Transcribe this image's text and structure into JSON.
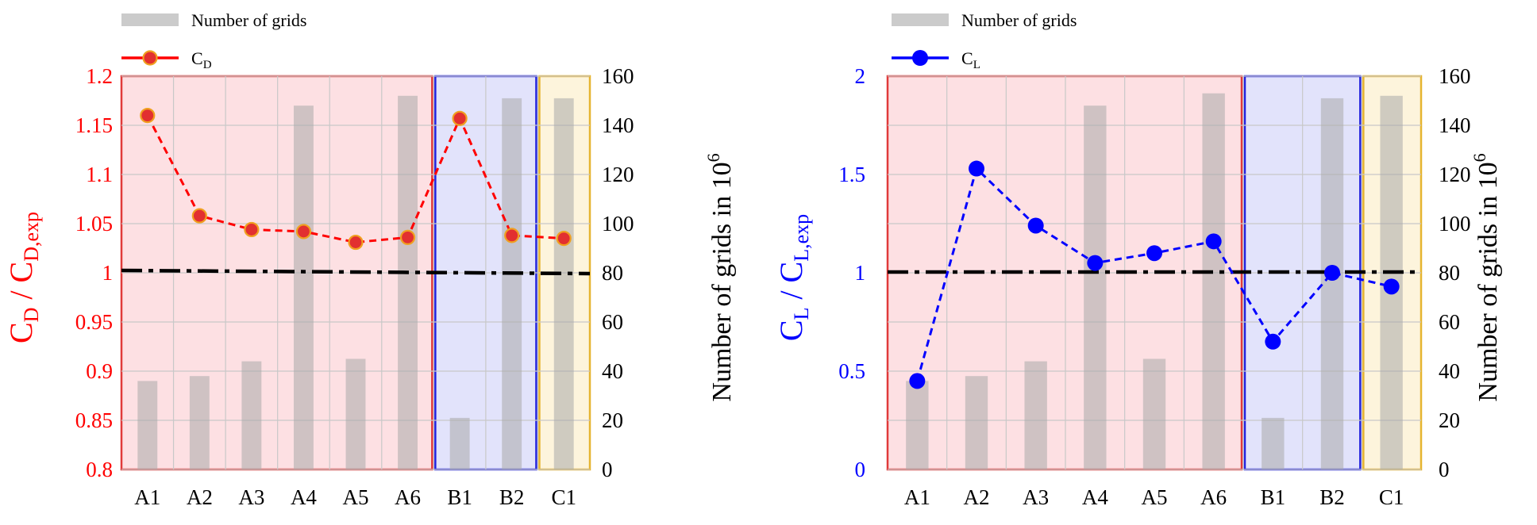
{
  "chart_data": [
    {
      "type": "bar+line",
      "name": "drag",
      "accent": "#ff0000",
      "categories": [
        "A1",
        "A2",
        "A3",
        "A4",
        "A5",
        "A6",
        "B1",
        "B2",
        "C1"
      ],
      "grid_counts": [
        36,
        38,
        44,
        148,
        45,
        152,
        21,
        151,
        151
      ],
      "ratio_values": [
        1.16,
        1.058,
        1.044,
        1.042,
        1.031,
        1.036,
        1.157,
        1.038,
        1.035
      ],
      "reference_value": 1.0,
      "left_ylim": [
        0.8,
        1.2
      ],
      "left_ticks": [
        "0.8",
        "0.85",
        "0.9",
        "0.95",
        "1",
        "1.05",
        "1.1",
        "1.15",
        "1.2"
      ],
      "right_ylim": [
        0,
        160
      ],
      "right_ticks": [
        "0",
        "20",
        "40",
        "60",
        "80",
        "100",
        "120",
        "140",
        "160"
      ],
      "left_ylabel": {
        "main": "C",
        "sub1": "D",
        "mid": " / C",
        "sub2": "D,exp"
      },
      "right_ylabel": {
        "main": "Number of grids in 10",
        "sup": "6"
      },
      "legend": {
        "bars": "Number of grids",
        "line_main": "C",
        "line_sub": "D"
      },
      "groups": [
        {
          "label": "A",
          "start": 0,
          "end": 5,
          "fill": "#fde0e3",
          "stroke": "#e03a3a"
        },
        {
          "label": "B",
          "start": 6,
          "end": 7,
          "fill": "#e2e3fb",
          "stroke": "#2222dd"
        },
        {
          "label": "C",
          "start": 8,
          "end": 8,
          "fill": "#fdf4dc",
          "stroke": "#e6b430"
        }
      ]
    },
    {
      "type": "bar+line",
      "name": "lift",
      "accent": "#0000ff",
      "categories": [
        "A1",
        "A2",
        "A3",
        "A4",
        "A5",
        "A6",
        "B1",
        "B2",
        "C1"
      ],
      "grid_counts": [
        36,
        38,
        44,
        148,
        45,
        153,
        21,
        151,
        152
      ],
      "ratio_values": [
        0.45,
        1.53,
        1.24,
        1.05,
        1.1,
        1.16,
        0.65,
        1.0,
        0.93
      ],
      "reference_value": 1.0,
      "left_ylim": [
        0,
        2
      ],
      "left_ticks": [
        "0",
        "0.5",
        "1",
        "1.5",
        "2"
      ],
      "right_ylim": [
        0,
        160
      ],
      "right_ticks": [
        "0",
        "20",
        "40",
        "60",
        "80",
        "100",
        "120",
        "140",
        "160"
      ],
      "left_ylabel": {
        "main": "C",
        "sub1": "L",
        "mid": " / C",
        "sub2": "L,exp"
      },
      "right_ylabel": {
        "main": "Number of grids in 10",
        "sup": "6"
      },
      "legend": {
        "bars": "Number of grids",
        "line_main": "C",
        "line_sub": "L"
      },
      "groups": [
        {
          "label": "A",
          "start": 0,
          "end": 5,
          "fill": "#fde0e3",
          "stroke": "#e03a3a"
        },
        {
          "label": "B",
          "start": 6,
          "end": 7,
          "fill": "#e2e3fb",
          "stroke": "#2222dd"
        },
        {
          "label": "C",
          "start": 8,
          "end": 8,
          "fill": "#fdf4dc",
          "stroke": "#e6b430"
        }
      ]
    }
  ]
}
